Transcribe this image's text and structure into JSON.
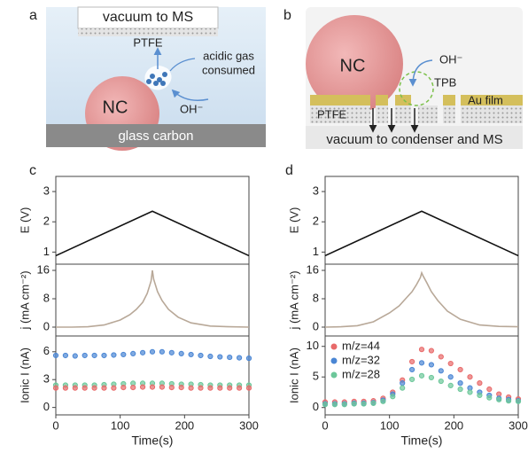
{
  "figure": {
    "panel_labels": [
      "a",
      "b",
      "c",
      "d"
    ]
  },
  "diagram_a": {
    "top": "vacuum to MS",
    "membrane": "PTFE",
    "gas_line1": "acidic gas",
    "gas_line2": "consumed",
    "particle": "NC",
    "ion": "OH⁻",
    "electrode": "glass carbon"
  },
  "diagram_b": {
    "particle": "NC",
    "ion": "OH⁻",
    "boundary": "TPB",
    "film": "Au film",
    "membrane": "PTFE",
    "bottom": "vacuum to condenser and MS"
  },
  "chart_data": [
    {
      "type": "line",
      "y_label": "E (V)",
      "x": [
        0,
        150,
        300
      ],
      "values": [
        0.88,
        2.35,
        0.88
      ],
      "color": "#111111",
      "xlim": [
        0,
        300
      ],
      "ylim": [
        0.6,
        3.5
      ],
      "yticks": [
        1,
        2,
        3
      ]
    },
    {
      "type": "line",
      "y_label": "j (mA cm⁻²)",
      "x": [
        0,
        25,
        50,
        75,
        100,
        115,
        125,
        135,
        142,
        148,
        150,
        152,
        158,
        165,
        175,
        190,
        210,
        240,
        270,
        300
      ],
      "values": [
        0,
        0,
        0.1,
        0.6,
        2,
        3.5,
        5,
        7,
        9.5,
        13,
        16,
        13.5,
        10,
        7.5,
        5,
        2.8,
        1.2,
        0.3,
        0.1,
        0
      ],
      "color": "#b8a898",
      "xlim": [
        0,
        300
      ],
      "ylim": [
        -2.5,
        17.75
      ],
      "yticks": [
        0,
        8,
        16
      ]
    },
    {
      "type": "scatter",
      "y_label": "Ionic I (nA)",
      "x_label": "Time(s)",
      "x": [
        0,
        15,
        30,
        45,
        60,
        75,
        90,
        105,
        120,
        135,
        150,
        165,
        180,
        195,
        210,
        225,
        240,
        255,
        270,
        285,
        300
      ],
      "series": [
        {
          "color": "#4a86d4",
          "values": [
            5.6,
            5.6,
            5.55,
            5.6,
            5.6,
            5.6,
            5.65,
            5.7,
            5.8,
            5.9,
            6.0,
            6.0,
            5.9,
            5.8,
            5.7,
            5.6,
            5.5,
            5.45,
            5.4,
            5.35,
            5.3
          ]
        },
        {
          "color": "#6cc79a",
          "values": [
            2.4,
            2.4,
            2.4,
            2.4,
            2.4,
            2.45,
            2.5,
            2.55,
            2.6,
            2.6,
            2.6,
            2.6,
            2.55,
            2.5,
            2.5,
            2.45,
            2.4,
            2.4,
            2.4,
            2.4,
            2.4
          ]
        },
        {
          "color": "#e86a6a",
          "values": [
            2.1,
            2.1,
            2.1,
            2.1,
            2.1,
            2.1,
            2.1,
            2.15,
            2.15,
            2.2,
            2.2,
            2.2,
            2.15,
            2.15,
            2.1,
            2.1,
            2.1,
            2.1,
            2.1,
            2.1,
            2.1
          ]
        }
      ],
      "xlim": [
        0,
        300
      ],
      "ylim": [
        -0.8,
        7.7
      ],
      "xticks": [
        0,
        100,
        200,
        300
      ],
      "yticks": [
        0,
        3,
        6
      ]
    },
    {
      "type": "line",
      "y_label": "E (V)",
      "x": [
        0,
        150,
        300
      ],
      "values": [
        0.88,
        2.35,
        0.88
      ],
      "color": "#111111",
      "xlim": [
        0,
        300
      ],
      "ylim": [
        0.6,
        3.5
      ],
      "yticks": [
        1,
        2,
        3
      ]
    },
    {
      "type": "line",
      "y_label": "j (mA cm⁻²)",
      "x": [
        0,
        25,
        50,
        75,
        100,
        115,
        125,
        135,
        142,
        148,
        150,
        152,
        158,
        165,
        175,
        190,
        210,
        240,
        270,
        300
      ],
      "values": [
        0,
        0.1,
        0.4,
        1.5,
        4,
        6,
        8,
        10,
        12,
        14,
        15.3,
        14.5,
        12.5,
        10,
        7.5,
        4.5,
        2.2,
        0.6,
        0.2,
        0.1
      ],
      "color": "#b8a898",
      "xlim": [
        0,
        300
      ],
      "ylim": [
        -2.5,
        17.75
      ],
      "yticks": [
        0,
        8,
        16
      ]
    },
    {
      "type": "scatter",
      "y_label": "Ionic I (nA)",
      "x_label": "Time(s)",
      "legend": "upper left",
      "x": [
        0,
        15,
        30,
        45,
        60,
        75,
        90,
        105,
        120,
        135,
        150,
        165,
        180,
        195,
        210,
        225,
        240,
        255,
        270,
        285,
        300
      ],
      "series": [
        {
          "name": "m/z=44",
          "color": "#e86a6a",
          "values": [
            0.9,
            0.9,
            0.9,
            1.0,
            1.0,
            1.1,
            1.5,
            2.5,
            4.5,
            7.5,
            9.5,
            9.3,
            8.3,
            7.2,
            6.2,
            5.0,
            4.0,
            3.0,
            2.2,
            1.7,
            1.4
          ]
        },
        {
          "name": "m/z=32",
          "color": "#4a86d4",
          "values": [
            0.6,
            0.6,
            0.6,
            0.7,
            0.7,
            0.8,
            1.2,
            2.2,
            4.0,
            6.2,
            7.3,
            7.0,
            6.0,
            5.0,
            4.0,
            3.2,
            2.5,
            2.0,
            1.5,
            1.3,
            1.1
          ]
        },
        {
          "name": "m/z=28",
          "color": "#6cc79a",
          "values": [
            0.5,
            0.5,
            0.5,
            0.6,
            0.6,
            0.7,
            1.0,
            1.8,
            3.2,
            4.6,
            5.2,
            4.9,
            4.3,
            3.6,
            3.0,
            2.5,
            2.0,
            1.6,
            1.3,
            1.1,
            1.0
          ]
        }
      ],
      "xlim": [
        0,
        300
      ],
      "ylim": [
        -1.2,
        11.7
      ],
      "xticks": [
        0,
        100,
        200,
        300
      ],
      "yticks": [
        0,
        5,
        10
      ]
    }
  ]
}
